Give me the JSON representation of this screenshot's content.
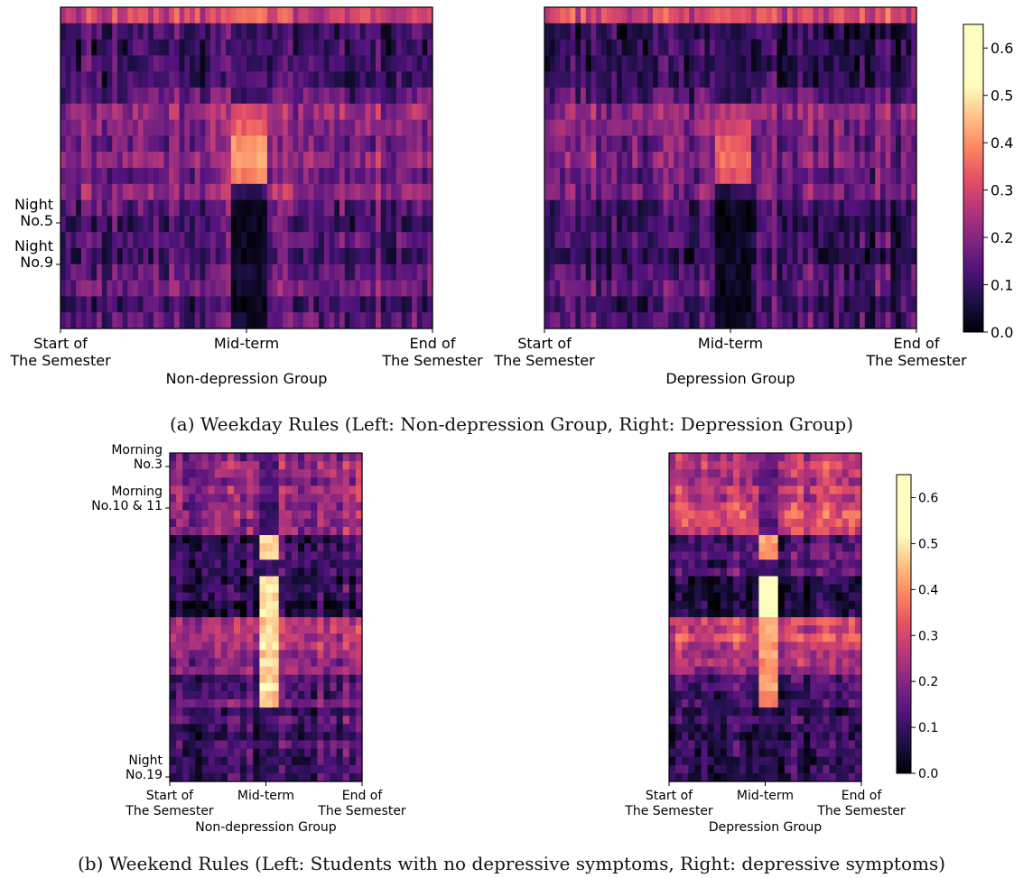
{
  "figure": {
    "caption_a": "(a) Weekday Rules (Left: Non-depression Group, Right: Depression Group)",
    "caption_b": "(b) Weekend Rules (Left: Students with no depressive symptoms, Right: depressive symptoms)"
  },
  "chart_data": [
    {
      "type": "heatmap",
      "id": "weekday_nondep",
      "xlabel": "Non-depression Group",
      "x_tick_labels": [
        "Start of\nThe Semester",
        "Mid-term",
        "End of\nThe Semester"
      ],
      "y_tick_labels": [
        "Night\nNo.5",
        "Night\nNo.9"
      ],
      "rows": 20,
      "cols": 72,
      "mid_col": 36,
      "value_range": [
        0,
        0.65
      ],
      "colormap": "magma",
      "row_base": [
        0.3,
        0.12,
        0.1,
        0.12,
        0.11,
        0.16,
        0.22,
        0.2,
        0.18,
        0.22,
        0.17,
        0.22,
        0.15,
        0.12,
        0.15,
        0.11,
        0.16,
        0.18,
        0.12,
        0.15
      ],
      "mid_values": [
        0.36,
        0.1,
        0.11,
        0.1,
        0.13,
        0.1,
        0.3,
        0.34,
        0.4,
        0.42,
        0.38,
        0.1,
        0.03,
        0.02,
        0.03,
        0.03,
        0.05,
        0.03,
        0.02,
        0.04
      ],
      "seed": 11
    },
    {
      "type": "heatmap",
      "id": "weekday_dep",
      "xlabel": "Depression Group",
      "x_tick_labels": [
        "Start of\nThe Semester",
        "Mid-term",
        "End of\nThe Semester"
      ],
      "y_tick_labels": [],
      "rows": 20,
      "cols": 72,
      "mid_col": 36,
      "value_range": [
        0,
        0.65
      ],
      "colormap": "magma",
      "row_base": [
        0.3,
        0.09,
        0.1,
        0.09,
        0.1,
        0.14,
        0.22,
        0.2,
        0.17,
        0.2,
        0.16,
        0.18,
        0.12,
        0.1,
        0.12,
        0.09,
        0.13,
        0.15,
        0.11,
        0.13
      ],
      "mid_values": [
        0.34,
        0.08,
        0.09,
        0.08,
        0.1,
        0.08,
        0.26,
        0.3,
        0.34,
        0.36,
        0.32,
        0.08,
        0.03,
        0.02,
        0.03,
        0.03,
        0.04,
        0.03,
        0.02,
        0.04
      ],
      "seed": 23
    },
    {
      "type": "colorbar",
      "id": "colorbar_a",
      "colormap": "magma",
      "range": [
        0,
        0.65
      ],
      "ticks": [
        "0.0",
        "0.1",
        "0.2",
        "0.3",
        "0.4",
        "0.5",
        "0.6"
      ]
    },
    {
      "type": "heatmap",
      "id": "weekend_nondep",
      "xlabel": "Non-depression Group",
      "x_tick_labels": [
        "Start of\nThe Semester",
        "Mid-term",
        "End of\nThe Semester"
      ],
      "y_tick_labels": [
        "Morning\nNo.3",
        "Morning\nNo.10 & 11",
        "Night\nNo.19"
      ],
      "rows": 40,
      "cols": 30,
      "mid_col": 15,
      "value_range": [
        0,
        0.65
      ],
      "colormap": "magma",
      "row_base": [
        0.2,
        0.24,
        0.22,
        0.2,
        0.25,
        0.22,
        0.2,
        0.24,
        0.2,
        0.22,
        0.08,
        0.1,
        0.12,
        0.1,
        0.12,
        0.08,
        0.12,
        0.1,
        0.05,
        0.05,
        0.25,
        0.27,
        0.25,
        0.27,
        0.22,
        0.2,
        0.22,
        0.12,
        0.15,
        0.12,
        0.18,
        0.1,
        0.15,
        0.12,
        0.1,
        0.14,
        0.12,
        0.1,
        0.12,
        0.11
      ],
      "mid_values": [
        0.15,
        0.12,
        0.14,
        0.12,
        0.15,
        0.12,
        0.1,
        0.12,
        0.1,
        0.12,
        0.48,
        0.45,
        0.48,
        0.1,
        0.1,
        0.48,
        0.5,
        0.48,
        0.5,
        0.5,
        0.45,
        0.48,
        0.47,
        0.5,
        0.45,
        0.48,
        0.45,
        0.45,
        0.5,
        0.45,
        0.45,
        0.1,
        0.12,
        0.1,
        0.08,
        0.1,
        0.08,
        0.1,
        0.09,
        0.1
      ],
      "seed": 37
    },
    {
      "type": "heatmap",
      "id": "weekend_dep",
      "xlabel": "Depression Group",
      "x_tick_labels": [
        "Start of\nThe Semester",
        "Mid-term",
        "End of\nThe Semester"
      ],
      "y_tick_labels": [],
      "rows": 40,
      "cols": 30,
      "mid_col": 15,
      "value_range": [
        0,
        0.65
      ],
      "colormap": "magma",
      "row_base": [
        0.25,
        0.28,
        0.25,
        0.22,
        0.28,
        0.24,
        0.3,
        0.32,
        0.3,
        0.28,
        0.1,
        0.12,
        0.15,
        0.1,
        0.14,
        0.05,
        0.05,
        0.04,
        0.06,
        0.05,
        0.28,
        0.26,
        0.3,
        0.25,
        0.22,
        0.25,
        0.2,
        0.1,
        0.12,
        0.08,
        0.12,
        0.06,
        0.1,
        0.08,
        0.06,
        0.1,
        0.08,
        0.06,
        0.08,
        0.07
      ],
      "mid_values": [
        0.18,
        0.15,
        0.12,
        0.15,
        0.18,
        0.15,
        0.2,
        0.15,
        0.12,
        0.15,
        0.42,
        0.4,
        0.42,
        0.1,
        0.1,
        0.6,
        0.62,
        0.6,
        0.62,
        0.55,
        0.45,
        0.42,
        0.45,
        0.4,
        0.42,
        0.4,
        0.38,
        0.4,
        0.42,
        0.4,
        0.38,
        0.08,
        0.1,
        0.08,
        0.06,
        0.08,
        0.06,
        0.08,
        0.07,
        0.08
      ],
      "seed": 51
    },
    {
      "type": "colorbar",
      "id": "colorbar_b",
      "colormap": "magma",
      "range": [
        0,
        0.65
      ],
      "ticks": [
        "0.0",
        "0.1",
        "0.2",
        "0.3",
        "0.4",
        "0.5",
        "0.6"
      ]
    }
  ]
}
